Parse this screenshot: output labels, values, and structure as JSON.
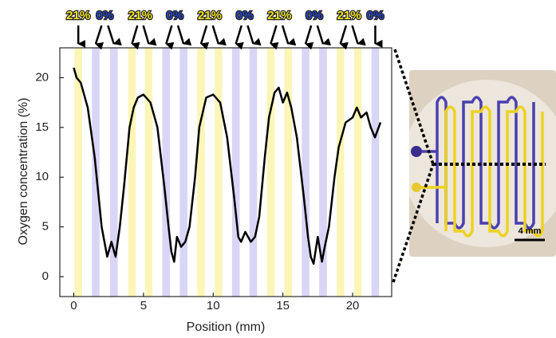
{
  "chart_data": {
    "type": "line",
    "x_label": "Position (mm)",
    "y_label": "Oxygen concentration (%)",
    "xlim": [
      -1,
      22.8
    ],
    "ylim": [
      -2,
      23
    ],
    "xticks": [
      0,
      5,
      10,
      15,
      20
    ],
    "yticks": [
      0,
      5,
      10,
      15,
      20
    ],
    "grid": false,
    "color": "#000000",
    "x": [
      0,
      0.2,
      0.5,
      1,
      1.5,
      2,
      2.2,
      2.4,
      2.7,
      3,
      3.3,
      3.6,
      4,
      4.3,
      4.6,
      5,
      5.5,
      6,
      6.5,
      6.8,
      7,
      7.2,
      7.4,
      7.7,
      8,
      8.3,
      8.7,
      9,
      9.5,
      10,
      10.5,
      11,
      11.5,
      11.8,
      12,
      12.3,
      12.7,
      13,
      13.3,
      13.7,
      14,
      14.4,
      14.7,
      15,
      15.3,
      15.6,
      16,
      16.5,
      16.8,
      17,
      17.2,
      17.5,
      17.8,
      18,
      18.3,
      18.7,
      19,
      19.5,
      20,
      20.3,
      20.6,
      21,
      21.3,
      21.6,
      22
    ],
    "values": [
      21,
      20,
      19.5,
      17,
      12,
      5,
      3.5,
      2,
      3.5,
      2,
      5,
      9,
      15,
      17,
      18,
      18.3,
      17.5,
      15,
      9,
      5,
      2.5,
      1.5,
      4,
      3,
      3.5,
      5,
      10,
      15,
      18,
      18.3,
      17.5,
      14,
      8,
      4,
      3.5,
      4.5,
      3.5,
      4,
      6,
      12,
      16,
      18.5,
      19,
      17.5,
      18.5,
      17,
      14,
      8,
      4,
      2,
      1.3,
      4,
      1.5,
      3,
      5,
      10,
      13,
      15.5,
      16,
      17,
      16,
      16.5,
      15,
      14,
      15.5
    ],
    "bands": [
      {
        "x": [
          0.05,
          0.6
        ],
        "color": "#fbf6b8"
      },
      {
        "x": [
          1.3,
          1.85
        ],
        "color": "#d9d5f6"
      },
      {
        "x": [
          2.6,
          3.15
        ],
        "color": "#d9d5f6"
      },
      {
        "x": [
          3.9,
          4.45
        ],
        "color": "#fbf6b8"
      },
      {
        "x": [
          5.1,
          5.65
        ],
        "color": "#fbf6b8"
      },
      {
        "x": [
          6.35,
          6.9
        ],
        "color": "#d9d5f6"
      },
      {
        "x": [
          7.6,
          8.15
        ],
        "color": "#d9d5f6"
      },
      {
        "x": [
          8.85,
          9.4
        ],
        "color": "#fbf6b8"
      },
      {
        "x": [
          10.1,
          10.65
        ],
        "color": "#fbf6b8"
      },
      {
        "x": [
          11.35,
          11.9
        ],
        "color": "#d9d5f6"
      },
      {
        "x": [
          12.6,
          13.15
        ],
        "color": "#d9d5f6"
      },
      {
        "x": [
          13.85,
          14.4
        ],
        "color": "#fbf6b8"
      },
      {
        "x": [
          15.1,
          15.65
        ],
        "color": "#fbf6b8"
      },
      {
        "x": [
          16.35,
          16.9
        ],
        "color": "#d9d5f6"
      },
      {
        "x": [
          17.6,
          18.15
        ],
        "color": "#d9d5f6"
      },
      {
        "x": [
          18.85,
          19.4
        ],
        "color": "#fbf6b8"
      },
      {
        "x": [
          20.1,
          20.65
        ],
        "color": "#fbf6b8"
      },
      {
        "x": [
          21.35,
          21.9
        ],
        "color": "#d9d5f6"
      }
    ],
    "top_labels": [
      {
        "text": "21%",
        "color": "#f2e41e"
      },
      {
        "text": "0%",
        "color": "#2a46c4"
      },
      {
        "text": "21%",
        "color": "#f2e41e"
      },
      {
        "text": "0%",
        "color": "#2a46c4"
      },
      {
        "text": "21%",
        "color": "#f2e41e"
      },
      {
        "text": "0%",
        "color": "#2a46c4"
      },
      {
        "text": "21%",
        "color": "#f2e41e"
      },
      {
        "text": "0%",
        "color": "#2a46c4"
      },
      {
        "text": "21%",
        "color": "#f2e41e"
      },
      {
        "text": "0%",
        "color": "#2a46c4"
      }
    ]
  },
  "image": {
    "scale_label": "4 mm"
  }
}
